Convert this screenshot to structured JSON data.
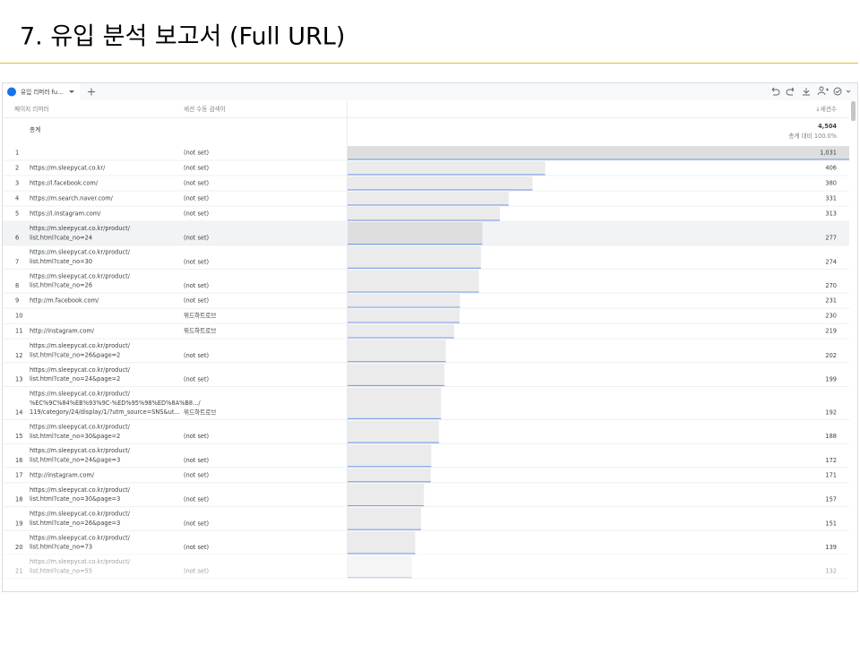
{
  "header": {
    "title": "7. 유입 분석 보고서 (Full URL)"
  },
  "toolbar": {
    "tab": "유입 리퍼러 fu..."
  },
  "table": {
    "columns": [
      "페이지 리퍼러",
      "세션 수동 검색어",
      "↓세션수"
    ],
    "total": {
      "label": "총계",
      "sessions": {
        "value": 4504,
        "label": "4,504"
      },
      "share": "총계 대비 100.0%"
    },
    "rows": [
      {
        "index": 1,
        "referrer": [],
        "source": "(not set)",
        "sessions": {
          "value": 1031,
          "label": "1,031"
        }
      },
      {
        "index": 2,
        "referrer": [
          "https://m.sleepycat.co.kr/"
        ],
        "source": "(not set)",
        "sessions": 406
      },
      {
        "index": 3,
        "referrer": [
          "https://l.facebook.com/"
        ],
        "source": "(not set)",
        "sessions": 380
      },
      {
        "index": 4,
        "referrer": [
          "https://m.search.naver.com/"
        ],
        "source": "(not set)",
        "sessions": 331
      },
      {
        "index": 5,
        "referrer": [
          "https://l.instagram.com/"
        ],
        "source": "(not set)",
        "sessions": 313
      },
      {
        "index": 6,
        "referrer": [
          "https://m.sleepycat.co.kr/product/",
          "list.html?cate_no=24"
        ],
        "source": "(not set)",
        "sessions": 277
      },
      {
        "index": 7,
        "referrer": [
          "https://m.sleepycat.co.kr/product/",
          "list.html?cate_no=30"
        ],
        "source": "(not set)",
        "sessions": 274
      },
      {
        "index": 8,
        "referrer": [
          "https://m.sleepycat.co.kr/product/",
          "list.html?cate_no=26"
        ],
        "source": "(not set)",
        "sessions": 270
      },
      {
        "index": 9,
        "referrer": [
          "http://m.facebook.com/"
        ],
        "source": "(not set)",
        "sessions": 231
      },
      {
        "index": 10,
        "referrer": [],
        "source": "위드하트로브",
        "sessions": 230
      },
      {
        "index": 11,
        "referrer": [
          "http://instagram.com/"
        ],
        "source": "위드하트로브",
        "sessions": 219
      },
      {
        "index": 12,
        "referrer": [
          "https://m.sleepycat.co.kr/product/",
          "list.html?cate_no=26&page=2"
        ],
        "source": "(not set)",
        "sessions": 202
      },
      {
        "index": 13,
        "referrer": [
          "https://m.sleepycat.co.kr/product/",
          "list.html?cate_no=24&page=2"
        ],
        "source": "(not set)",
        "sessions": 199
      },
      {
        "index": 14,
        "referrer": [
          "https://m.sleepycat.co.kr/product/",
          "%EC%9C%84%EB%93%9C-%ED%95%98%ED%8A%B8.../",
          "119/category/24/display/1/?utm_source=SNS&ut..."
        ],
        "source": "위드하트로브",
        "sessions": 192
      },
      {
        "index": 15,
        "referrer": [
          "https://m.sleepycat.co.kr/product/",
          "list.html?cate_no=30&page=2"
        ],
        "source": "(not set)",
        "sessions": 188
      },
      {
        "index": 16,
        "referrer": [
          "https://m.sleepycat.co.kr/product/",
          "list.html?cate_no=24&page=3"
        ],
        "source": "(not set)",
        "sessions": 172
      },
      {
        "index": 17,
        "referrer": [
          "http://instagram.com/"
        ],
        "source": "(not set)",
        "sessions": 171
      },
      {
        "index": 18,
        "referrer": [
          "https://m.sleepycat.co.kr/product/",
          "list.html?cate_no=30&page=3"
        ],
        "source": "(not set)",
        "sessions": 157
      },
      {
        "index": 19,
        "referrer": [
          "https://m.sleepycat.co.kr/product/",
          "list.html?cate_no=26&page=3"
        ],
        "source": "(not set)",
        "sessions": 151
      },
      {
        "index": 20,
        "referrer": [
          "https://m.sleepycat.co.kr/product/",
          "list.html?cate_no=73"
        ],
        "source": "(not set)",
        "sessions": 139
      },
      {
        "index": 21,
        "referrer": [
          "https://m.sleepycat.co.kr/product/",
          "list.html?cate_no=55"
        ],
        "source": "(not set)",
        "sessions": 132
      }
    ]
  }
}
